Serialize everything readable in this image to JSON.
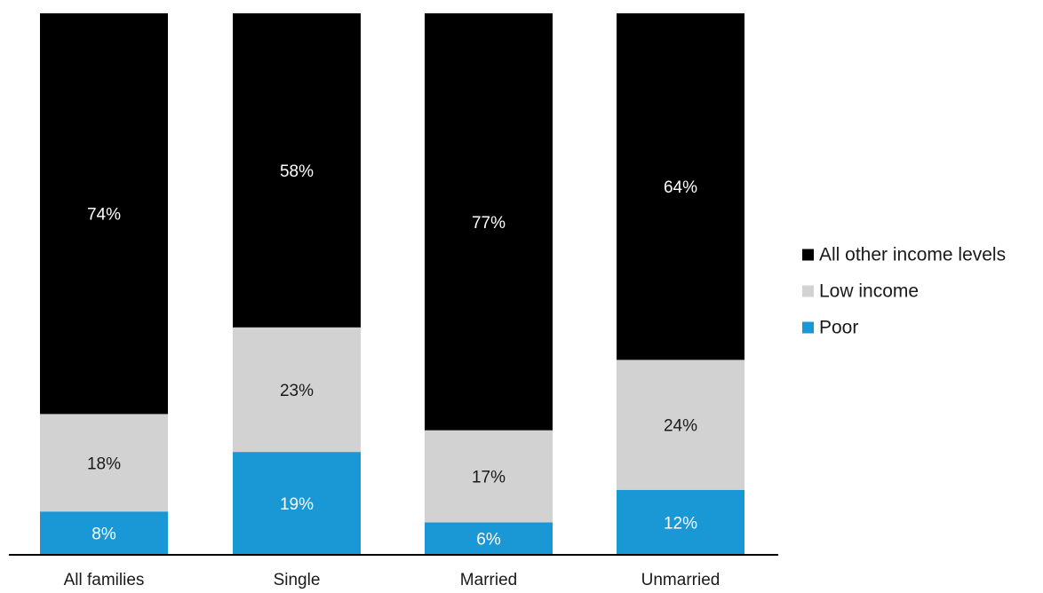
{
  "chart_data": {
    "type": "bar",
    "stacked": true,
    "categories": [
      "All families",
      "Single",
      "Married",
      "Unmarried"
    ],
    "series": [
      {
        "name": "Poor",
        "color": "#1a98d5",
        "label_color": "#ffffff",
        "values": [
          8,
          19,
          6,
          12
        ],
        "labels": [
          "8%",
          "19%",
          "6%",
          "12%"
        ]
      },
      {
        "name": "Low income",
        "color": "#d2d2d2",
        "label_color": "#1a1a1a",
        "values": [
          18,
          23,
          17,
          24
        ],
        "labels": [
          "18%",
          "23%",
          "17%",
          "24%"
        ]
      },
      {
        "name": "All other income levels",
        "color": "#000000",
        "label_color": "#ffffff",
        "values": [
          74,
          58,
          77,
          64
        ],
        "labels": [
          "74%",
          "58%",
          "77%",
          "64%"
        ]
      }
    ],
    "legend_order": [
      "All other income levels",
      "Low income",
      "Poor"
    ],
    "legend_position": "right",
    "ylim": [
      0,
      100
    ],
    "grid": false,
    "axis_color": "#000000"
  }
}
